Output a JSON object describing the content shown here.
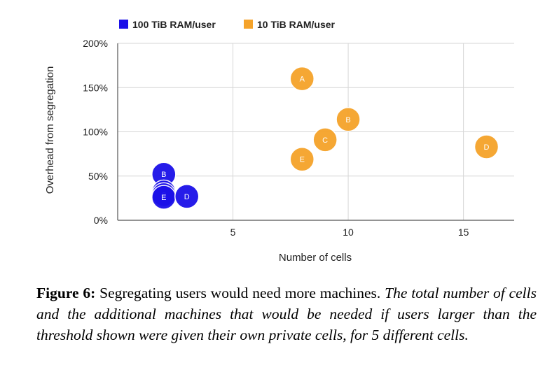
{
  "chart_data": {
    "type": "scatter",
    "xlabel": "Number of cells",
    "ylabel": "Overhead from segregation",
    "xlim": [
      0,
      17.2
    ],
    "ylim": [
      0,
      200
    ],
    "x_ticks": [
      5,
      10,
      15
    ],
    "y_ticks": [
      0,
      50,
      100,
      150,
      200
    ],
    "y_tick_labels": [
      "0%",
      "50%",
      "100%",
      "150%",
      "200%"
    ],
    "grid": true,
    "legend_position": "top",
    "series": [
      {
        "name": "100 TiB RAM/user",
        "color": "#1b10e8",
        "points": [
          {
            "label": "B",
            "x": 2,
            "y": 52
          },
          {
            "label": "A",
            "x": 2,
            "y": 32
          },
          {
            "label": "C",
            "x": 2,
            "y": 29
          },
          {
            "label": "E",
            "x": 2,
            "y": 26
          },
          {
            "label": "D",
            "x": 3,
            "y": 27
          }
        ]
      },
      {
        "name": "10 TiB RAM/user",
        "color": "#f5a32a",
        "points": [
          {
            "label": "A",
            "x": 8,
            "y": 160
          },
          {
            "label": "B",
            "x": 10,
            "y": 114
          },
          {
            "label": "C",
            "x": 9,
            "y": 91
          },
          {
            "label": "E",
            "x": 8,
            "y": 69
          },
          {
            "label": "D",
            "x": 16,
            "y": 83
          }
        ]
      }
    ]
  },
  "caption": {
    "label": "Figure 6:",
    "text": " Segregating users would need more machines. ",
    "italic": "The total number of cells and the additional machines that would be needed if users larger than the threshold shown were given their own private cells, for 5 different cells."
  }
}
